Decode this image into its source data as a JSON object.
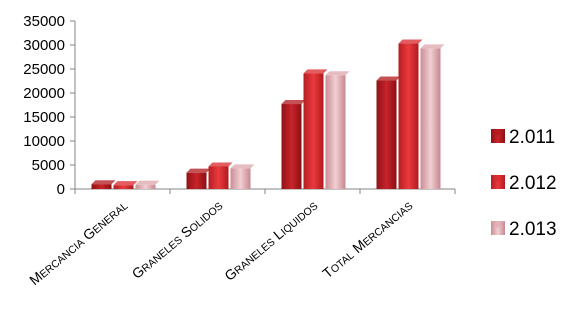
{
  "chart_data": {
    "type": "bar",
    "title": "",
    "xlabel": "",
    "ylabel": "",
    "ylim": [
      0,
      35000
    ],
    "yticks": [
      0,
      5000,
      10000,
      15000,
      20000,
      25000,
      30000,
      35000
    ],
    "ytick_labels": [
      "0",
      "5000",
      "10000",
      "15000",
      "20000",
      "25000",
      "30000",
      "35000"
    ],
    "grid": false,
    "legend_position": "right",
    "categories": [
      "MERCANCIA GENERAL",
      "GRANELES SOLIDOS",
      "GRANELES LIQUIDOS",
      "TOTAL MERCANCIAS"
    ],
    "series": [
      {
        "name": "2.011",
        "color": "#b0181c",
        "values": [
          1000,
          3400,
          17700,
          22600
        ]
      },
      {
        "name": "2.012",
        "color": "#d9262b",
        "values": [
          800,
          4700,
          24100,
          30300
        ]
      },
      {
        "name": "2.013",
        "color": "#dca5ab",
        "values": [
          900,
          4300,
          23700,
          29300
        ]
      }
    ]
  }
}
